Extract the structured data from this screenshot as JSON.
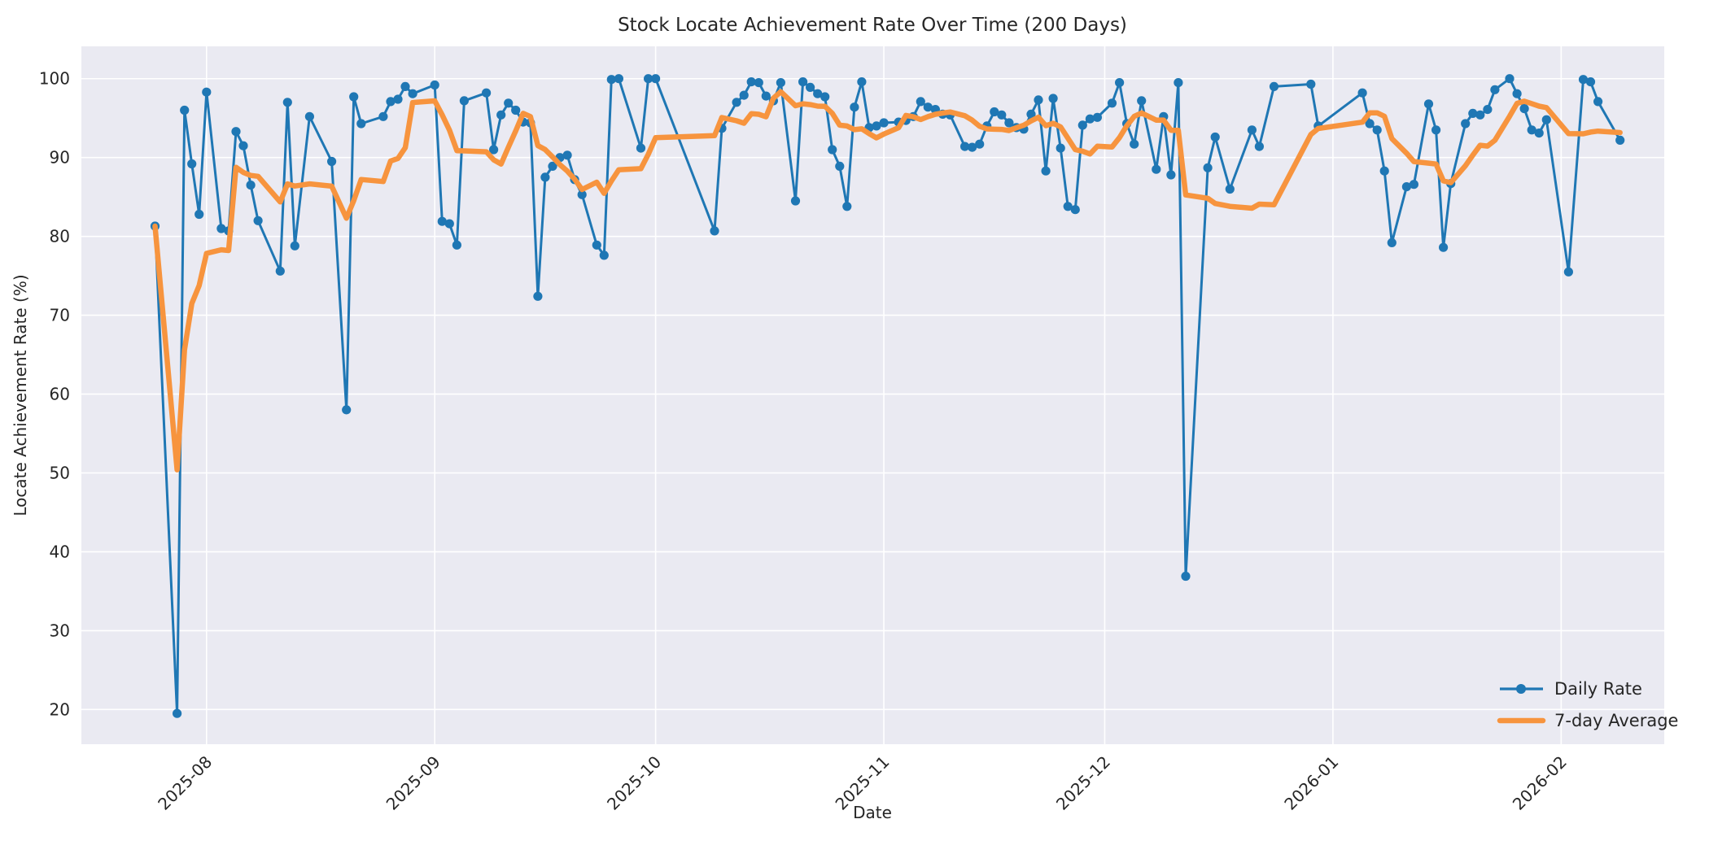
{
  "title": "Stock Locate Achievement Rate Over Time (200 Days)",
  "axes": {
    "xlabel": "Date",
    "ylabel": "Locate Achievement Rate (%)",
    "ylim": [
      15.6,
      104.1
    ],
    "xlim": [
      -10,
      205
    ],
    "yticks": [
      20,
      30,
      40,
      50,
      60,
      70,
      80,
      90,
      100
    ],
    "xticks": [
      {
        "label": "2025-08",
        "offset": 7
      },
      {
        "label": "2025-09",
        "offset": 38
      },
      {
        "label": "2025-10",
        "offset": 68
      },
      {
        "label": "2025-11",
        "offset": 99
      },
      {
        "label": "2025-12",
        "offset": 129
      },
      {
        "label": "2026-01",
        "offset": 160
      },
      {
        "label": "2026-02",
        "offset": 191
      }
    ],
    "grid": true
  },
  "legend": {
    "position": "lower right",
    "items": [
      {
        "label": "Daily Rate",
        "color": "#1f77b4",
        "marker": "circle"
      },
      {
        "label": "7-day Average",
        "color": "#f7943e",
        "marker": "line"
      }
    ]
  },
  "colors": {
    "plot_bg": "#eaeaf2",
    "grid": "#ffffff",
    "daily": "#1f77b4",
    "average": "#f7943e",
    "text": "#262626"
  },
  "chart_data": {
    "type": "line",
    "title": "Stock Locate Achievement Rate Over Time (200 Days)",
    "xlabel": "Date",
    "ylabel": "Locate Achievement Rate (%)",
    "x_unit": "day offset within the 200-day window (month ticks at offsets listed in axes.xticks)",
    "ylim": [
      15.6,
      104.1
    ],
    "xlim": [
      -10,
      205
    ],
    "legend_position": "lower right",
    "series": [
      {
        "name": "Daily Rate",
        "style": "line+markers",
        "points": [
          [
            0,
            81.3
          ],
          [
            3,
            19.5
          ],
          [
            4,
            96.0
          ],
          [
            5,
            89.2
          ],
          [
            6,
            82.8
          ],
          [
            7,
            98.3
          ],
          [
            9,
            81.0
          ],
          [
            10,
            80.7
          ],
          [
            11,
            93.3
          ],
          [
            12,
            91.5
          ],
          [
            13,
            86.5
          ],
          [
            14,
            82.0
          ],
          [
            17,
            75.6
          ],
          [
            18,
            97.0
          ],
          [
            19,
            78.8
          ],
          [
            21,
            95.2
          ],
          [
            24,
            89.5
          ],
          [
            26,
            58.0
          ],
          [
            27,
            97.7
          ],
          [
            28,
            94.3
          ],
          [
            31,
            95.2
          ],
          [
            32,
            97.1
          ],
          [
            33,
            97.4
          ],
          [
            34,
            99.0
          ],
          [
            35,
            98.1
          ],
          [
            38,
            99.2
          ],
          [
            39,
            81.9
          ],
          [
            40,
            81.6
          ],
          [
            41,
            78.9
          ],
          [
            42,
            97.2
          ],
          [
            45,
            98.2
          ],
          [
            46,
            91.0
          ],
          [
            47,
            95.4
          ],
          [
            48,
            96.9
          ],
          [
            49,
            96.0
          ],
          [
            50,
            94.5
          ],
          [
            51,
            94.4
          ],
          [
            52,
            72.4
          ],
          [
            53,
            87.5
          ],
          [
            54,
            88.9
          ],
          [
            55,
            90.0
          ],
          [
            56,
            90.3
          ],
          [
            57,
            87.2
          ],
          [
            58,
            85.3
          ],
          [
            60,
            78.9
          ],
          [
            61,
            77.6
          ],
          [
            62,
            99.9
          ],
          [
            63,
            100.0
          ],
          [
            66,
            91.2
          ],
          [
            67,
            100.0
          ],
          [
            68,
            100.0
          ],
          [
            76,
            80.7
          ],
          [
            77,
            93.7
          ],
          [
            79,
            97.0
          ],
          [
            80,
            97.9
          ],
          [
            81,
            99.6
          ],
          [
            82,
            99.5
          ],
          [
            83,
            97.8
          ],
          [
            84,
            97.2
          ],
          [
            85,
            99.5
          ],
          [
            87,
            84.5
          ],
          [
            88,
            99.6
          ],
          [
            89,
            98.9
          ],
          [
            90,
            98.1
          ],
          [
            91,
            97.7
          ],
          [
            92,
            91.0
          ],
          [
            93,
            88.9
          ],
          [
            94,
            83.8
          ],
          [
            95,
            96.4
          ],
          [
            96,
            99.6
          ],
          [
            97,
            93.8
          ],
          [
            98,
            94.0
          ],
          [
            99,
            94.4
          ],
          [
            101,
            94.5
          ],
          [
            102,
            94.7
          ],
          [
            103,
            95.2
          ],
          [
            104,
            97.1
          ],
          [
            105,
            96.4
          ],
          [
            106,
            96.1
          ],
          [
            107,
            95.5
          ],
          [
            108,
            95.4
          ],
          [
            110,
            91.4
          ],
          [
            111,
            91.3
          ],
          [
            112,
            91.7
          ],
          [
            113,
            94.0
          ],
          [
            114,
            95.8
          ],
          [
            115,
            95.4
          ],
          [
            116,
            94.4
          ],
          [
            117,
            93.8
          ],
          [
            118,
            93.6
          ],
          [
            119,
            95.5
          ],
          [
            120,
            97.3
          ],
          [
            121,
            88.3
          ],
          [
            122,
            97.5
          ],
          [
            123,
            91.2
          ],
          [
            124,
            83.8
          ],
          [
            125,
            83.4
          ],
          [
            126,
            94.1
          ],
          [
            127,
            94.9
          ],
          [
            128,
            95.1
          ],
          [
            130,
            96.9
          ],
          [
            131,
            99.5
          ],
          [
            132,
            94.3
          ],
          [
            133,
            91.7
          ],
          [
            134,
            97.2
          ],
          [
            136,
            88.5
          ],
          [
            137,
            95.2
          ],
          [
            138,
            87.8
          ],
          [
            139,
            99.5
          ],
          [
            140,
            36.9
          ],
          [
            143,
            88.7
          ],
          [
            144,
            92.6
          ],
          [
            146,
            86.0
          ],
          [
            149,
            93.5
          ],
          [
            150,
            91.4
          ],
          [
            152,
            99.0
          ],
          [
            157,
            99.3
          ],
          [
            158,
            94.0
          ],
          [
            164,
            98.2
          ],
          [
            165,
            94.3
          ],
          [
            166,
            93.5
          ],
          [
            167,
            88.3
          ],
          [
            168,
            79.2
          ],
          [
            170,
            86.3
          ],
          [
            171,
            86.6
          ],
          [
            173,
            96.8
          ],
          [
            174,
            93.5
          ],
          [
            175,
            78.6
          ],
          [
            176,
            86.7
          ],
          [
            178,
            94.3
          ],
          [
            179,
            95.6
          ],
          [
            180,
            95.4
          ],
          [
            181,
            96.1
          ],
          [
            182,
            98.6
          ],
          [
            184,
            100.0
          ],
          [
            185,
            98.1
          ],
          [
            186,
            96.2
          ],
          [
            187,
            93.5
          ],
          [
            188,
            93.1
          ],
          [
            189,
            94.8
          ],
          [
            192,
            75.5
          ],
          [
            194,
            99.9
          ],
          [
            195,
            99.6
          ],
          [
            196,
            97.1
          ],
          [
            199,
            92.2
          ]
        ]
      },
      {
        "name": "7-day Average",
        "style": "line",
        "derived": "rolling mean of the previous 7 Daily Rate points (min_periods=1)"
      }
    ]
  }
}
